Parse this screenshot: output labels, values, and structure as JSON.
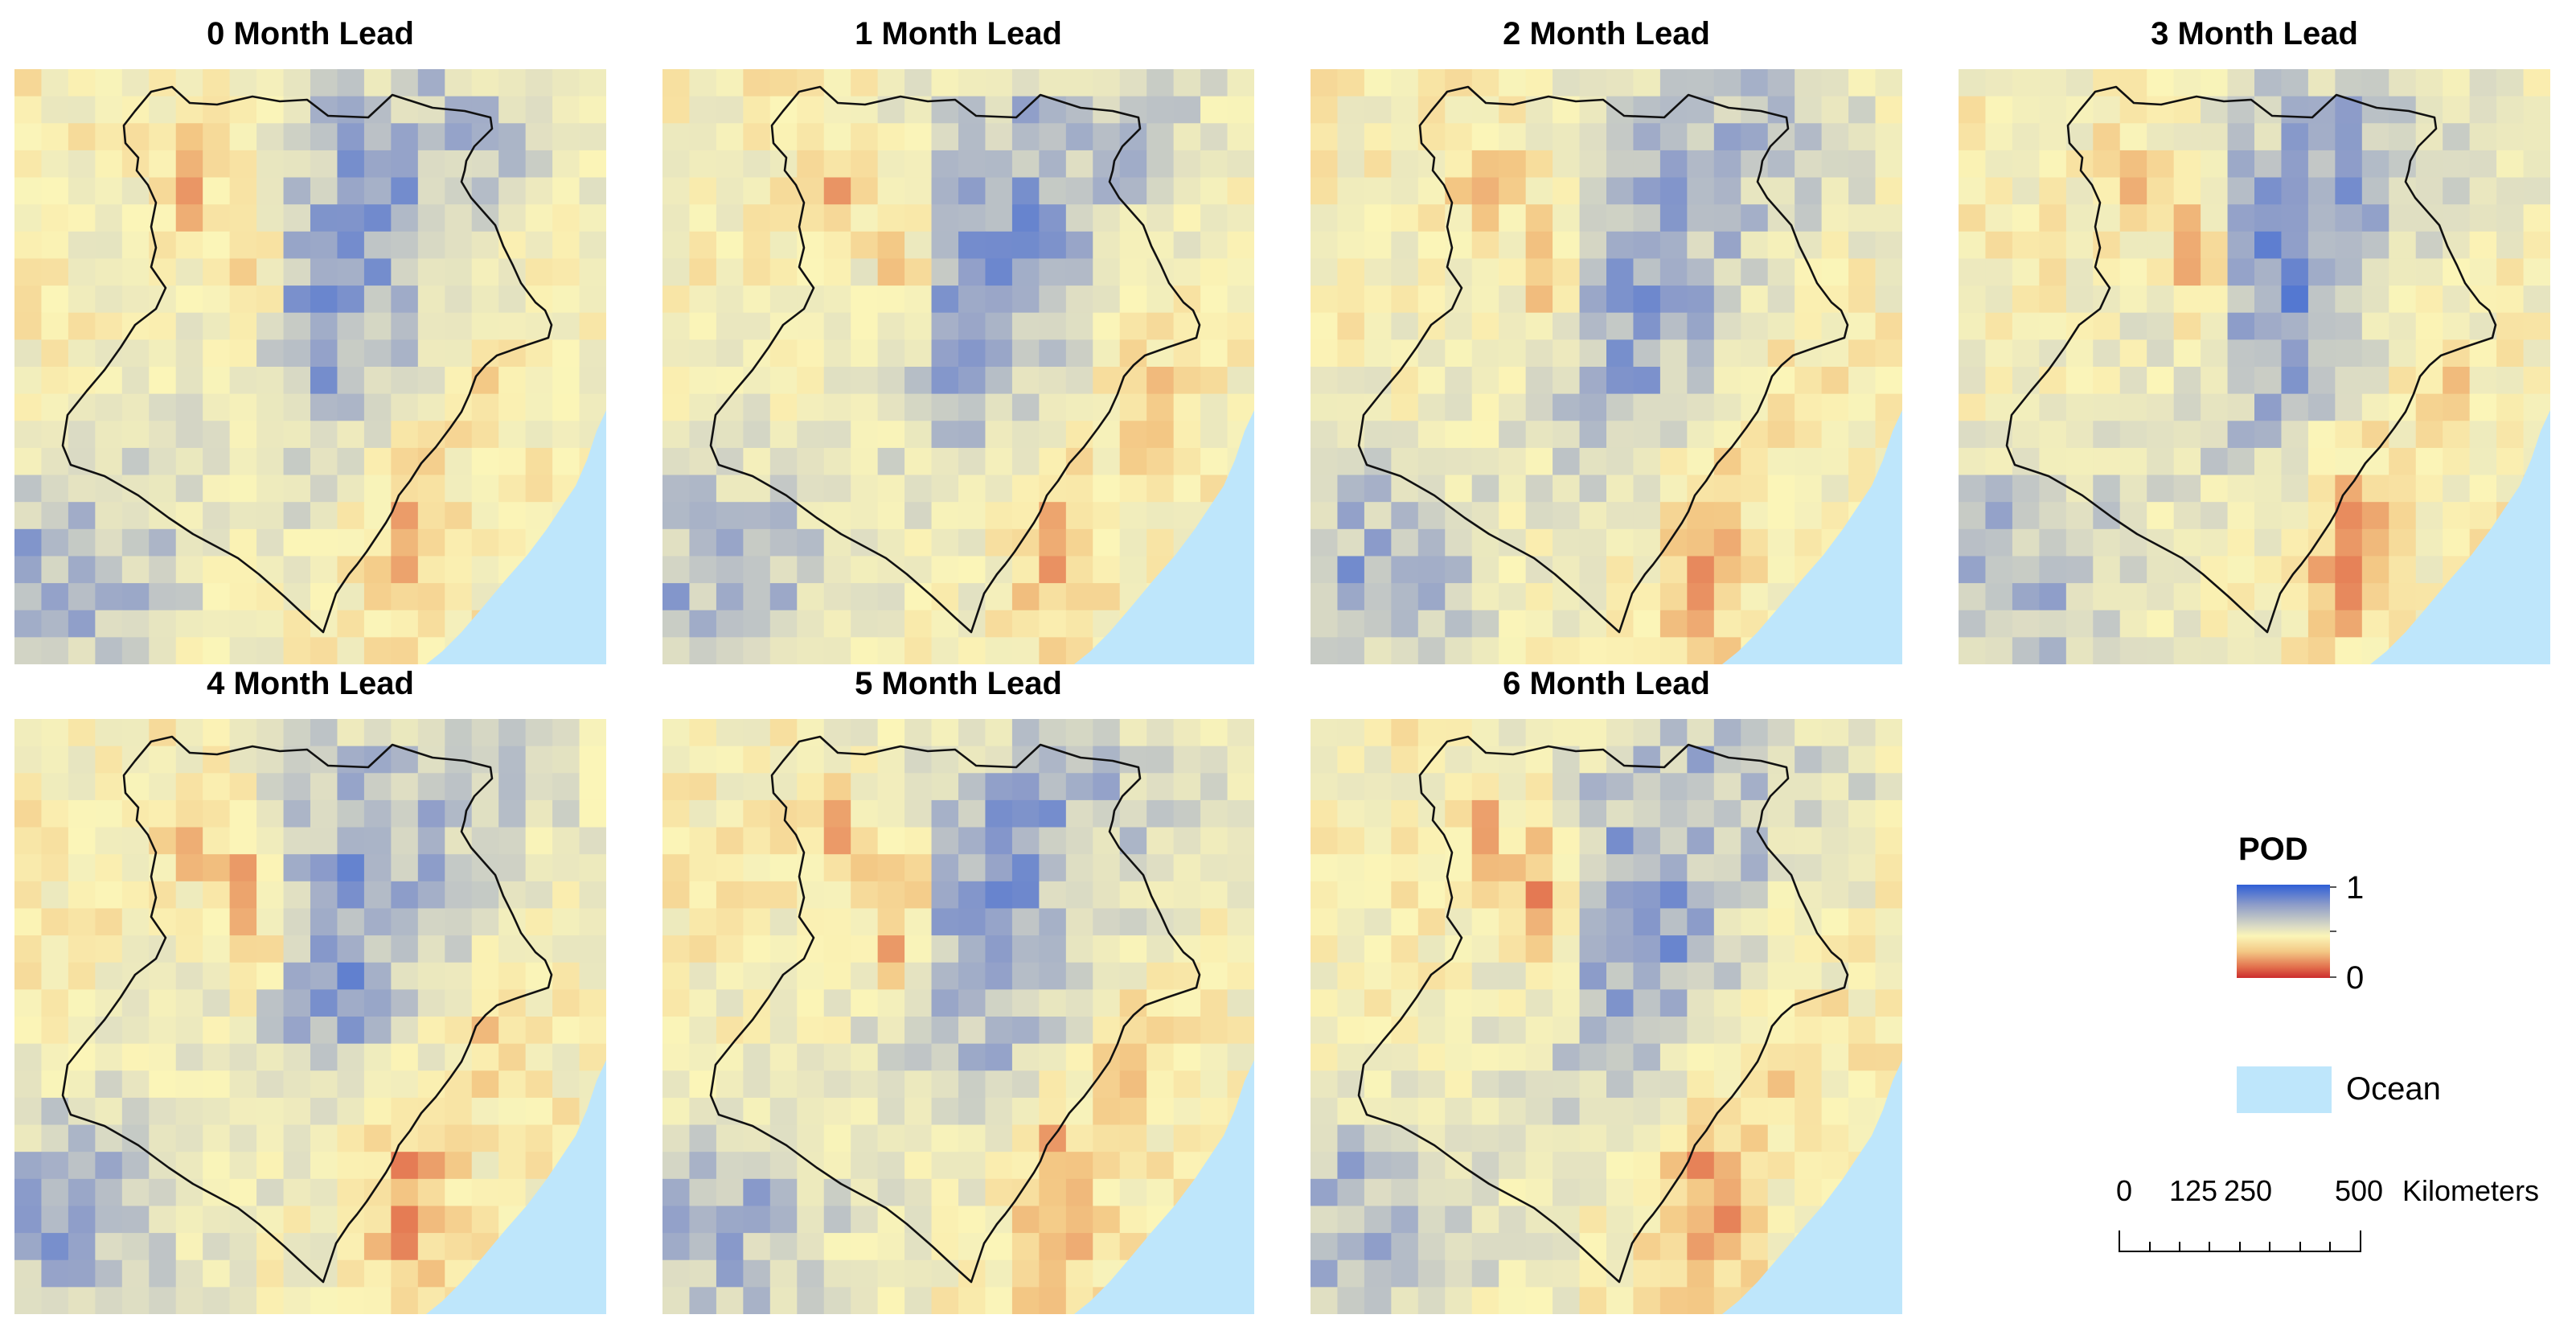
{
  "figure": {
    "panels": [
      {
        "title": "0 Month Lead",
        "variant": 0
      },
      {
        "title": "1 Month Lead",
        "variant": 1
      },
      {
        "title": "2 Month Lead",
        "variant": 2
      },
      {
        "title": "3 Month Lead",
        "variant": 3
      },
      {
        "title": "4 Month Lead",
        "variant": 4
      },
      {
        "title": "5 Month Lead",
        "variant": 5
      },
      {
        "title": "6 Month Lead",
        "variant": 6
      }
    ]
  },
  "legend": {
    "title": "POD",
    "max_label": "1",
    "min_label": "0",
    "ramp_colors": [
      "#2f5fd6",
      "#8f9ec9",
      "#dcdcc4",
      "#fbf5b8",
      "#f3c784",
      "#e3724e",
      "#cc2d2d"
    ],
    "ocean_label": "Ocean",
    "ocean_color": "#bee6fb"
  },
  "scalebar": {
    "labels": [
      "0",
      "125",
      "250",
      "500"
    ],
    "unit": "Kilometers"
  }
}
